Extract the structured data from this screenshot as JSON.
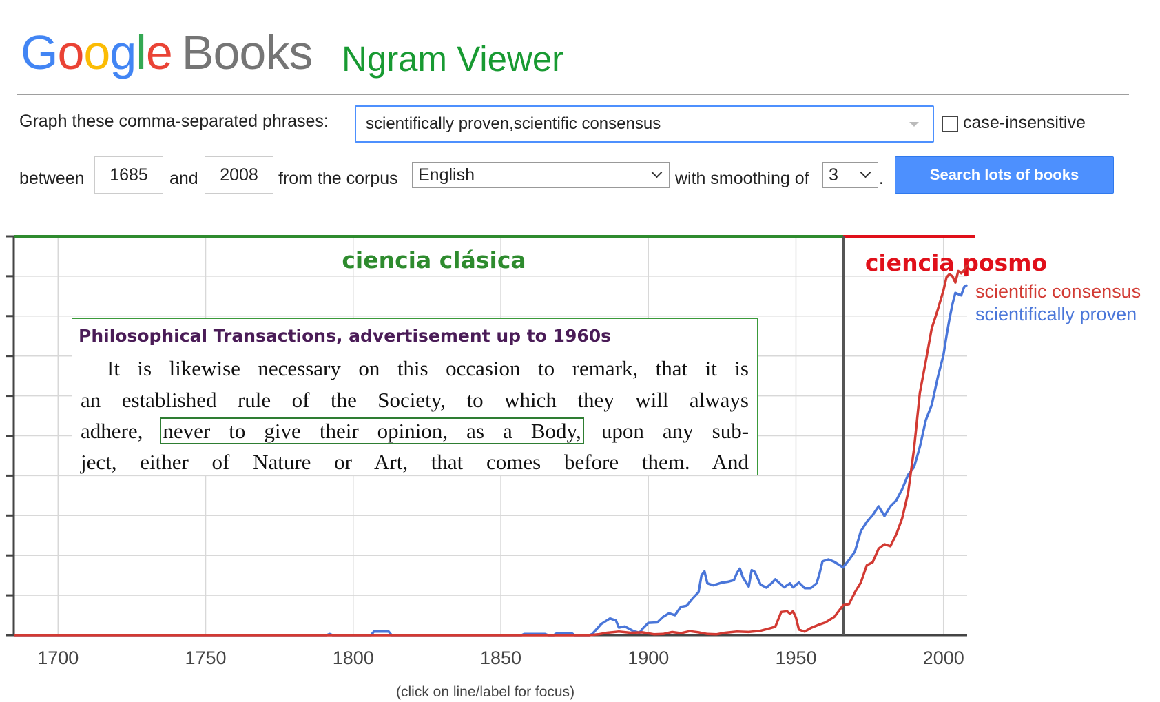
{
  "header": {
    "logo_letters": [
      {
        "ch": "G",
        "color": "#4285f4"
      },
      {
        "ch": "o",
        "color": "#ea4335"
      },
      {
        "ch": "o",
        "color": "#fbbc05"
      },
      {
        "ch": "g",
        "color": "#4285f4"
      },
      {
        "ch": "l",
        "color": "#34a853"
      },
      {
        "ch": "e",
        "color": "#ea4335"
      }
    ],
    "logo_books": "Books",
    "title": "Ngram Viewer"
  },
  "form": {
    "phrases_label": "Graph these comma-separated phrases:",
    "phrases_value": "scientifically proven,scientific consensus",
    "case_insensitive_label": "case-insensitive",
    "case_insensitive_checked": false,
    "between_label": "between",
    "start_year": "1685",
    "and_label": "and",
    "end_year": "2008",
    "corpus_label": "from the corpus",
    "corpus_value": "English",
    "smoothing_label": "with smoothing of",
    "smoothing_value": "3",
    "period": ".",
    "search_button": "Search lots of books"
  },
  "chart_data": {
    "type": "line",
    "x_range": [
      1685,
      2008
    ],
    "x_ticks": [
      "1700",
      "1750",
      "1800",
      "1850",
      "1900",
      "1950",
      "2000"
    ],
    "y_range": [
      0,
      100
    ],
    "y_ticks_count": 10,
    "grid": true,
    "series": [
      {
        "name": "scientific consensus",
        "color": "#d23a33",
        "points": [
          [
            1685,
            0
          ],
          [
            1880,
            0
          ],
          [
            1883,
            0.2
          ],
          [
            1886,
            0.6
          ],
          [
            1890,
            0.9
          ],
          [
            1894,
            0.6
          ],
          [
            1898,
            0.7
          ],
          [
            1902,
            0.2
          ],
          [
            1905,
            0.3
          ],
          [
            1908,
            0.8
          ],
          [
            1911,
            0.5
          ],
          [
            1914,
            1.0
          ],
          [
            1917,
            0.7
          ],
          [
            1920,
            0.3
          ],
          [
            1923,
            0.2
          ],
          [
            1926,
            0.6
          ],
          [
            1930,
            0.9
          ],
          [
            1934,
            0.8
          ],
          [
            1938,
            1.1
          ],
          [
            1941,
            1.7
          ],
          [
            1943,
            2.1
          ],
          [
            1945,
            5.8
          ],
          [
            1947,
            6.0
          ],
          [
            1948,
            5.4
          ],
          [
            1949,
            6.0
          ],
          [
            1950,
            4.4
          ],
          [
            1951,
            1.4
          ],
          [
            1953,
            0.9
          ],
          [
            1955,
            1.8
          ],
          [
            1958,
            2.7
          ],
          [
            1960,
            3.2
          ],
          [
            1963,
            4.6
          ],
          [
            1966,
            7.5
          ],
          [
            1968,
            7.8
          ],
          [
            1970,
            10.8
          ],
          [
            1972,
            13.2
          ],
          [
            1974,
            17.5
          ],
          [
            1976,
            18.3
          ],
          [
            1978,
            21.7
          ],
          [
            1980,
            22.8
          ],
          [
            1982,
            22.3
          ],
          [
            1984,
            25.3
          ],
          [
            1986,
            29.3
          ],
          [
            1988,
            35.7
          ],
          [
            1990,
            46.7
          ],
          [
            1992,
            60.8
          ],
          [
            1994,
            68.7
          ],
          [
            1996,
            76.9
          ],
          [
            1998,
            81.5
          ],
          [
            2000,
            86.5
          ],
          [
            2001,
            89.7
          ],
          [
            2002,
            90.5
          ],
          [
            2003,
            90.0
          ],
          [
            2004,
            88.4
          ],
          [
            2005,
            91.3
          ],
          [
            2006,
            90.7
          ],
          [
            2007,
            91.5
          ],
          [
            2008,
            92.9
          ]
        ]
      },
      {
        "name": "scientifically proven",
        "color": "#4a76d9",
        "points": [
          [
            1685,
            0
          ],
          [
            1791,
            0
          ],
          [
            1792,
            0.3
          ],
          [
            1793,
            0
          ],
          [
            1806,
            0
          ],
          [
            1807,
            0.9
          ],
          [
            1812,
            0.9
          ],
          [
            1813,
            0
          ],
          [
            1857,
            0
          ],
          [
            1858,
            0.3
          ],
          [
            1865,
            0.3
          ],
          [
            1866,
            0
          ],
          [
            1868,
            0
          ],
          [
            1869,
            0.5
          ],
          [
            1874,
            0.5
          ],
          [
            1875,
            0
          ],
          [
            1880,
            0
          ],
          [
            1881,
            0.3
          ],
          [
            1884,
            2.8
          ],
          [
            1887,
            4.2
          ],
          [
            1889,
            3.7
          ],
          [
            1890,
            1.9
          ],
          [
            1892,
            2.2
          ],
          [
            1895,
            1.0
          ],
          [
            1897,
            0.6
          ],
          [
            1898,
            1.6
          ],
          [
            1900,
            3.1
          ],
          [
            1903,
            3.2
          ],
          [
            1905,
            4.6
          ],
          [
            1907,
            5.5
          ],
          [
            1909,
            5.0
          ],
          [
            1911,
            7.1
          ],
          [
            1913,
            7.4
          ],
          [
            1915,
            9.2
          ],
          [
            1917,
            10.8
          ],
          [
            1918,
            15.0
          ],
          [
            1919,
            16.0
          ],
          [
            1920,
            13.0
          ],
          [
            1922,
            12.5
          ],
          [
            1925,
            13.2
          ],
          [
            1927,
            13.4
          ],
          [
            1929,
            13.8
          ],
          [
            1930,
            15.6
          ],
          [
            1931,
            16.7
          ],
          [
            1932,
            14.5
          ],
          [
            1934,
            12.2
          ],
          [
            1935,
            16.3
          ],
          [
            1936,
            15.9
          ],
          [
            1938,
            12.7
          ],
          [
            1940,
            11.9
          ],
          [
            1942,
            13.2
          ],
          [
            1943,
            14.0
          ],
          [
            1946,
            12.0
          ],
          [
            1948,
            13.0
          ],
          [
            1949,
            12.0
          ],
          [
            1951,
            13.2
          ],
          [
            1953,
            11.8
          ],
          [
            1955,
            11.8
          ],
          [
            1957,
            13.0
          ],
          [
            1958,
            15.5
          ],
          [
            1959,
            18.5
          ],
          [
            1961,
            19.0
          ],
          [
            1963,
            18.4
          ],
          [
            1966,
            17.0
          ],
          [
            1968,
            18.9
          ],
          [
            1970,
            21.0
          ],
          [
            1972,
            26.1
          ],
          [
            1974,
            28.4
          ],
          [
            1976,
            30.1
          ],
          [
            1978,
            32.3
          ],
          [
            1980,
            29.9
          ],
          [
            1982,
            32.3
          ],
          [
            1984,
            33.8
          ],
          [
            1986,
            36.6
          ],
          [
            1988,
            40.2
          ],
          [
            1990,
            42.1
          ],
          [
            1992,
            47.2
          ],
          [
            1994,
            53.9
          ],
          [
            1996,
            57.7
          ],
          [
            1998,
            64.5
          ],
          [
            2000,
            70.3
          ],
          [
            2001,
            75.0
          ],
          [
            2002,
            79.2
          ],
          [
            2003,
            82.9
          ],
          [
            2004,
            85.8
          ],
          [
            2005,
            85.5
          ],
          [
            2006,
            85.2
          ],
          [
            2007,
            87.3
          ],
          [
            2008,
            87.8
          ]
        ]
      }
    ]
  },
  "annotations": {
    "era_classic": "ciencia clásica",
    "era_classic_color": "#2e8b2e",
    "era_posmo": "ciencia posmo",
    "era_posmo_color": "#e0101a",
    "divider_year": 1966,
    "quote_title": "Philosophical Transactions, advertisement up to 1960s",
    "quote_line1": "It is likewise necessary on this occasion to remark, that it is",
    "quote_line2": "an established rule of the Society, to which they will always",
    "quote_line3_pre": "adhere,",
    "quote_line3_highlight": "never to give their opinion, as a Body,",
    "quote_line3_post": "upon any sub-",
    "quote_line4": "ject, either of Nature or Art, that comes before them.  And"
  },
  "footer": {
    "hint": "(click on line/label for focus)"
  }
}
